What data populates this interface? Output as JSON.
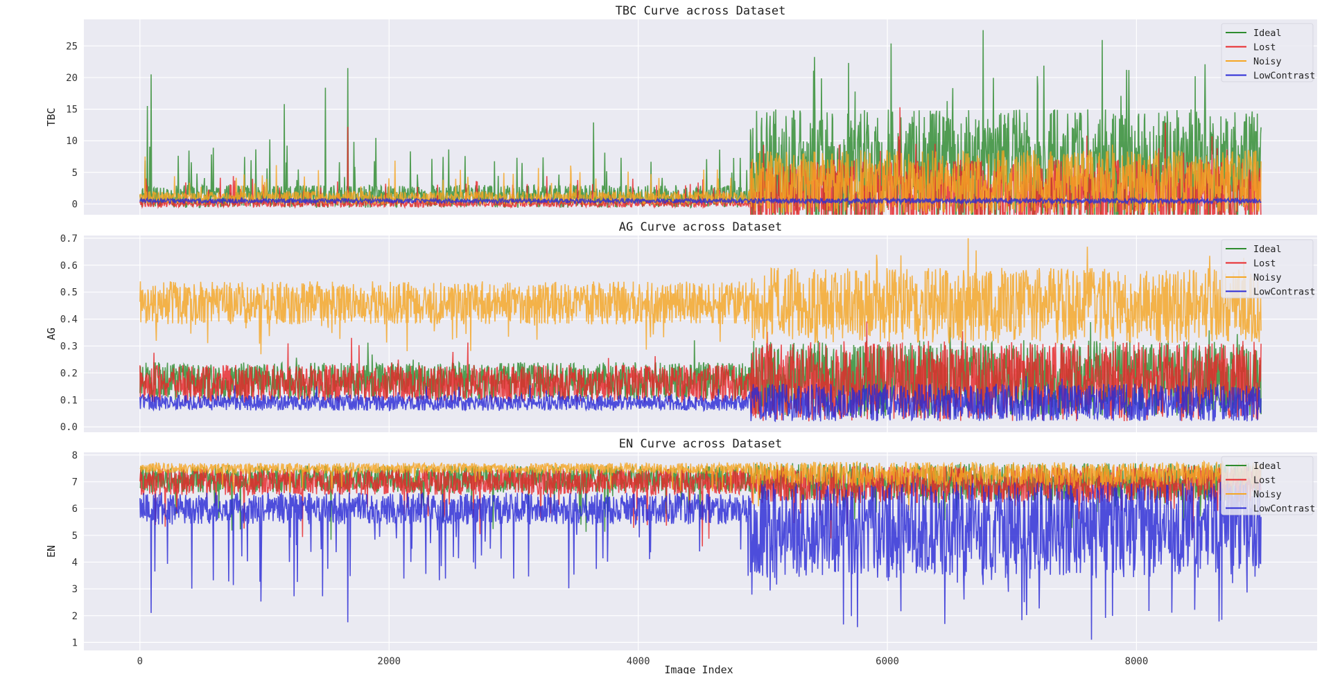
{
  "figure": {
    "xlabel": "Image Index",
    "legend_placement": "top-right",
    "series": [
      {
        "name": "Ideal",
        "color": "#2e8b2e"
      },
      {
        "name": "Lost",
        "color": "#e8272a"
      },
      {
        "name": "Noisy",
        "color": "#f5a623"
      },
      {
        "name": "LowContrast",
        "color": "#2b2bd6"
      }
    ]
  },
  "chart_data": [
    {
      "type": "line",
      "title": "TBC Curve across Dataset",
      "ylabel": "TBC",
      "xlabel": "",
      "xlim": [
        -450,
        9450
      ],
      "ylim": [
        -1.7,
        29.2
      ],
      "xticks": [
        0,
        2000,
        4000,
        6000,
        8000
      ],
      "yticks": [
        0,
        5,
        10,
        15,
        20,
        25
      ],
      "ytick_labels": [
        "0",
        "5",
        "10",
        "15",
        "20",
        "25"
      ],
      "grid": true,
      "legend": "top-right",
      "x_range": [
        0,
        9000
      ],
      "series": [
        {
          "name": "Ideal",
          "color": "#2e8b2e",
          "regimes": [
            {
              "x": [
                0,
                4900
              ],
              "base": 1.2,
              "amp": 1.8,
              "spike_prob": 0.03,
              "spike_max": 8
            },
            {
              "x": [
                4900,
                9000
              ],
              "base": 5.5,
              "amp": 9.5,
              "spike_prob": 0.02,
              "spike_max": 12
            }
          ],
          "peaks": [
            {
              "x": 60,
              "y": 15.5
            },
            {
              "x": 90,
              "y": 20.5
            },
            {
              "x": 1160,
              "y": 15.8
            },
            {
              "x": 1670,
              "y": 21.5
            },
            {
              "x": 1490,
              "y": 18.4
            },
            {
              "x": 3640,
              "y": 12.9
            },
            {
              "x": 6030,
              "y": 25.4
            },
            {
              "x": 6770,
              "y": 27.5
            },
            {
              "x": 8550,
              "y": 22.1
            }
          ]
        },
        {
          "name": "Lost",
          "color": "#e8272a",
          "regimes": [
            {
              "x": [
                0,
                4900
              ],
              "base": 0.1,
              "amp": 0.6,
              "spike_prob": 0.03,
              "spike_max": 4
            },
            {
              "x": [
                4900,
                9000
              ],
              "base": 1.5,
              "amp": 5.5,
              "spike_prob": 0.02,
              "spike_max": 7
            }
          ],
          "peaks": [
            {
              "x": 1670,
              "y": 12.2
            },
            {
              "x": 6100,
              "y": 15.3
            }
          ]
        },
        {
          "name": "Noisy",
          "color": "#f5a623",
          "regimes": [
            {
              "x": [
                0,
                4900
              ],
              "base": 1.0,
              "amp": 1.0,
              "spike_prob": 0.03,
              "spike_max": 5
            },
            {
              "x": [
                4900,
                9000
              ],
              "base": 3.5,
              "amp": 5.0,
              "spike_prob": 0.01,
              "spike_max": 2
            }
          ],
          "peaks": [
            {
              "x": 40,
              "y": 7.5
            }
          ]
        },
        {
          "name": "LowContrast",
          "color": "#2b2bd6",
          "regimes": [
            {
              "x": [
                0,
                4900
              ],
              "base": 0.5,
              "amp": 0.35,
              "spike_prob": 0,
              "spike_max": 0
            },
            {
              "x": [
                4900,
                9000
              ],
              "base": 0.5,
              "amp": 0.4,
              "spike_prob": 0,
              "spike_max": 0
            }
          ],
          "peaks": []
        }
      ]
    },
    {
      "type": "line",
      "title": "AG Curve across Dataset",
      "ylabel": "AG",
      "xlabel": "",
      "xlim": [
        -450,
        9450
      ],
      "ylim": [
        -0.02,
        0.71
      ],
      "xticks": [
        0,
        2000,
        4000,
        6000,
        8000
      ],
      "yticks": [
        0.0,
        0.1,
        0.2,
        0.3,
        0.4,
        0.5,
        0.6,
        0.7
      ],
      "ytick_labels": [
        "0.0",
        "0.1",
        "0.2",
        "0.3",
        "0.4",
        "0.5",
        "0.6",
        "0.7"
      ],
      "grid": true,
      "legend": "top-right",
      "x_range": [
        0,
        9000
      ],
      "series": [
        {
          "name": "Ideal",
          "color": "#2e8b2e",
          "regimes": [
            {
              "x": [
                0,
                4900
              ],
              "base": 0.17,
              "amp": 0.07,
              "spike_prob": 0.01,
              "spike_max": 0.1
            },
            {
              "x": [
                4900,
                9000
              ],
              "base": 0.18,
              "amp": 0.14,
              "spike_prob": 0.01,
              "spike_max": 0.1
            }
          ],
          "peaks": []
        },
        {
          "name": "Lost",
          "color": "#e8272a",
          "regimes": [
            {
              "x": [
                0,
                4900
              ],
              "base": 0.16,
              "amp": 0.07,
              "spike_prob": 0.01,
              "spike_max": 0.12
            },
            {
              "x": [
                4900,
                9000
              ],
              "base": 0.17,
              "amp": 0.15,
              "spike_prob": 0.01,
              "spike_max": 0.12
            }
          ],
          "peaks": [
            {
              "x": 1700,
              "y": 0.33
            },
            {
              "x": 1190,
              "y": 0.31
            }
          ]
        },
        {
          "name": "Noisy",
          "color": "#f5a623",
          "regimes": [
            {
              "x": [
                0,
                4900
              ],
              "base": 0.46,
              "amp": 0.08,
              "spike_prob": 0.03,
              "spike_max": -0.15
            },
            {
              "x": [
                4900,
                9000
              ],
              "base": 0.45,
              "amp": 0.14,
              "spike_prob": 0.02,
              "spike_max": 0.12
            }
          ],
          "peaks": [
            {
              "x": 6650,
              "y": 0.7
            }
          ]
        },
        {
          "name": "LowContrast",
          "color": "#2b2bd6",
          "regimes": [
            {
              "x": [
                0,
                4900
              ],
              "base": 0.09,
              "amp": 0.03,
              "spike_prob": 0.01,
              "spike_max": 0.04
            },
            {
              "x": [
                4900,
                9000
              ],
              "base": 0.09,
              "amp": 0.07,
              "spike_prob": 0.01,
              "spike_max": 0.06
            }
          ],
          "peaks": []
        }
      ]
    },
    {
      "type": "line",
      "title": "EN Curve across Dataset",
      "ylabel": "EN",
      "xlabel": "Image Index",
      "xlim": [
        -450,
        9450
      ],
      "ylim": [
        0.7,
        8.1
      ],
      "xticks": [
        0,
        2000,
        4000,
        6000,
        8000
      ],
      "xtick_labels": [
        "0",
        "2000",
        "4000",
        "6000",
        "8000"
      ],
      "yticks": [
        1,
        2,
        3,
        4,
        5,
        6,
        7,
        8
      ],
      "ytick_labels": [
        "1",
        "2",
        "3",
        "4",
        "5",
        "6",
        "7",
        "8"
      ],
      "grid": true,
      "legend": "top-right",
      "x_range": [
        0,
        9000
      ],
      "series": [
        {
          "name": "Ideal",
          "color": "#2e8b2e",
          "regimes": [
            {
              "x": [
                0,
                4900
              ],
              "base": 7.1,
              "amp": 0.5,
              "spike_prob": 0.02,
              "spike_max": -2
            },
            {
              "x": [
                4900,
                9000
              ],
              "base": 7.0,
              "amp": 0.7,
              "spike_prob": 0.02,
              "spike_max": -1.5
            }
          ],
          "peaks": []
        },
        {
          "name": "Lost",
          "color": "#e8272a",
          "regimes": [
            {
              "x": [
                0,
                4900
              ],
              "base": 7.0,
              "amp": 0.5,
              "spike_prob": 0.02,
              "spike_max": -2
            },
            {
              "x": [
                4900,
                9000
              ],
              "base": 6.9,
              "amp": 0.7,
              "spike_prob": 0.02,
              "spike_max": -1.5
            }
          ],
          "peaks": []
        },
        {
          "name": "Noisy",
          "color": "#f5a623",
          "regimes": [
            {
              "x": [
                0,
                4900
              ],
              "base": 7.5,
              "amp": 0.2,
              "spike_prob": 0.02,
              "spike_max": -1
            },
            {
              "x": [
                4900,
                9000
              ],
              "base": 7.3,
              "amp": 0.45,
              "spike_prob": 0.01,
              "spike_max": -1
            }
          ],
          "peaks": []
        },
        {
          "name": "LowContrast",
          "color": "#2b2bd6",
          "regimes": [
            {
              "x": [
                0,
                4900
              ],
              "base": 6.0,
              "amp": 0.6,
              "spike_prob": 0.04,
              "spike_max": -3
            },
            {
              "x": [
                4900,
                9000
              ],
              "base": 5.2,
              "amp": 1.8,
              "spike_prob": 0.04,
              "spike_max": -2.5
            }
          ],
          "peaks": [
            {
              "x": 7640,
              "y": 1.1
            },
            {
              "x": 1670,
              "y": 1.75
            },
            {
              "x": 90,
              "y": 2.1
            }
          ]
        }
      ]
    }
  ]
}
